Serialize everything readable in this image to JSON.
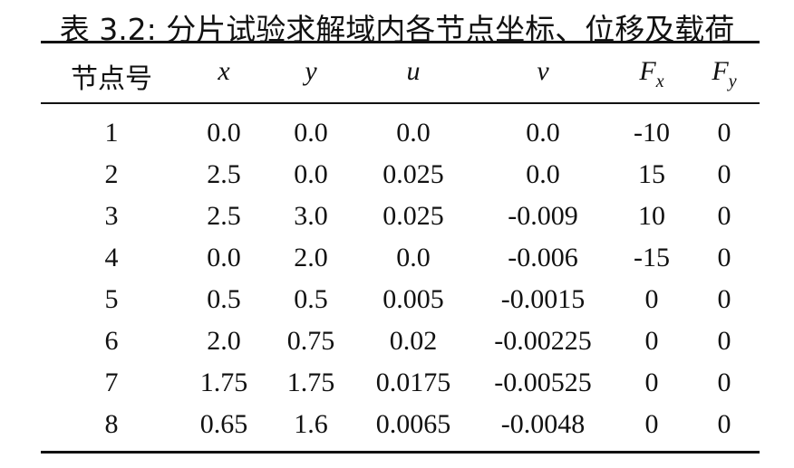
{
  "caption": {
    "label": "表 3.2:",
    "text": "分片试验求解域内各节点坐标、位移及载荷"
  },
  "table": {
    "header": [
      {
        "main": "节点号"
      },
      {
        "main": "x"
      },
      {
        "main": "y"
      },
      {
        "main": "u"
      },
      {
        "main": "v"
      },
      {
        "main": "F",
        "sub": "x"
      },
      {
        "main": "F",
        "sub": "y"
      }
    ],
    "rows": [
      [
        "1",
        "0.0",
        "0.0",
        "0.0",
        "0.0",
        "-10",
        "0"
      ],
      [
        "2",
        "2.5",
        "0.0",
        "0.025",
        "0.0",
        "15",
        "0"
      ],
      [
        "3",
        "2.5",
        "3.0",
        "0.025",
        "-0.009",
        "10",
        "0"
      ],
      [
        "4",
        "0.0",
        "2.0",
        "0.0",
        "-0.006",
        "-15",
        "0"
      ],
      [
        "5",
        "0.5",
        "0.5",
        "0.005",
        "-0.0015",
        "0",
        "0"
      ],
      [
        "6",
        "2.0",
        "0.75",
        "0.02",
        "-0.00225",
        "0",
        "0"
      ],
      [
        "7",
        "1.75",
        "1.75",
        "0.0175",
        "-0.00525",
        "0",
        "0"
      ],
      [
        "8",
        "0.65",
        "1.6",
        "0.0065",
        "-0.0048",
        "0",
        "0"
      ]
    ]
  }
}
